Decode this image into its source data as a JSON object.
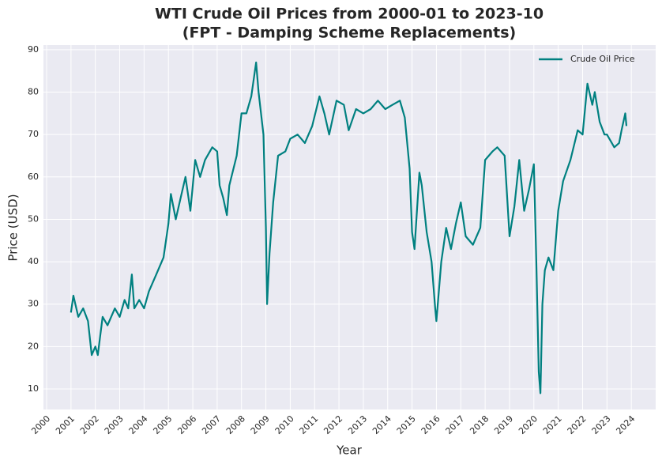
{
  "chart_data": {
    "type": "line",
    "title": "WTI Crude Oil Prices from 2000-01 to 2023-10",
    "subtitle": "(FPT - Damping Scheme Replacements)",
    "x_label": "Year",
    "y_label": "Price (USD)",
    "x": [
      2001.0,
      2001.1,
      2001.3,
      2001.5,
      2001.7,
      2001.85,
      2002.0,
      2002.1,
      2002.3,
      2002.5,
      2002.8,
      2003.0,
      2003.2,
      2003.35,
      2003.5,
      2003.6,
      2003.8,
      2004.0,
      2004.2,
      2004.5,
      2004.8,
      2005.0,
      2005.1,
      2005.3,
      2005.5,
      2005.7,
      2005.9,
      2006.1,
      2006.3,
      2006.5,
      2006.8,
      2007.0,
      2007.1,
      2007.25,
      2007.4,
      2007.5,
      2007.8,
      2008.0,
      2008.2,
      2008.4,
      2008.6,
      2008.7,
      2008.9,
      2009.0,
      2009.05,
      2009.15,
      2009.3,
      2009.5,
      2009.8,
      2010.0,
      2010.3,
      2010.6,
      2010.9,
      2011.2,
      2011.4,
      2011.6,
      2011.9,
      2012.2,
      2012.4,
      2012.7,
      2013.0,
      2013.3,
      2013.6,
      2013.9,
      2014.2,
      2014.5,
      2014.7,
      2014.9,
      2015.0,
      2015.1,
      2015.3,
      2015.4,
      2015.6,
      2015.8,
      2015.95,
      2016.0,
      2016.2,
      2016.4,
      2016.6,
      2016.8,
      2017.0,
      2017.2,
      2017.5,
      2017.8,
      2018.0,
      2018.3,
      2018.5,
      2018.8,
      2019.0,
      2019.2,
      2019.4,
      2019.6,
      2019.8,
      2020.0,
      2020.1,
      2020.2,
      2020.27,
      2020.35,
      2020.45,
      2020.6,
      2020.8,
      2021.0,
      2021.2,
      2021.5,
      2021.8,
      2022.0,
      2022.2,
      2022.4,
      2022.5,
      2022.7,
      2022.9,
      2023.0,
      2023.3,
      2023.5,
      2023.6,
      2023.75,
      2023.8
    ],
    "series": [
      {
        "name": "Crude Oil Price",
        "color": "#008080",
        "values": [
          28,
          32,
          27,
          29,
          26,
          18,
          20,
          18,
          27,
          25,
          29,
          27,
          31,
          29,
          37,
          29,
          31,
          29,
          33,
          37,
          41,
          49,
          56,
          50,
          55,
          60,
          52,
          64,
          60,
          64,
          67,
          66,
          58,
          55,
          51,
          58,
          65,
          75,
          75,
          79,
          87,
          80,
          70,
          48,
          30,
          42,
          54,
          65,
          66,
          69,
          70,
          68,
          72,
          79,
          75,
          70,
          78,
          77,
          71,
          76,
          75,
          76,
          78,
          76,
          77,
          78,
          74,
          62,
          47,
          43,
          61,
          58,
          47,
          40,
          29,
          26,
          40,
          48,
          43,
          49,
          54,
          46,
          44,
          48,
          64,
          66,
          67,
          65,
          46,
          53,
          64,
          52,
          57,
          63,
          40,
          14,
          9,
          30,
          38,
          41,
          38,
          52,
          59,
          64,
          71,
          70,
          82,
          77,
          80,
          73,
          70,
          70,
          67,
          68,
          71,
          75,
          72
        ]
      }
    ],
    "xlim": [
      1999.87,
      2025.0
    ],
    "xticks": [
      2000,
      2001,
      2002,
      2003,
      2004,
      2005,
      2006,
      2007,
      2008,
      2009,
      2010,
      2011,
      2012,
      2013,
      2014,
      2015,
      2016,
      2017,
      2018,
      2019,
      2020,
      2021,
      2022,
      2023,
      2024
    ],
    "ylim": [
      5.15,
      91.1
    ],
    "yticks": [
      10,
      20,
      30,
      40,
      50,
      60,
      70,
      80,
      90
    ],
    "grid": true,
    "legend": "upper right"
  }
}
